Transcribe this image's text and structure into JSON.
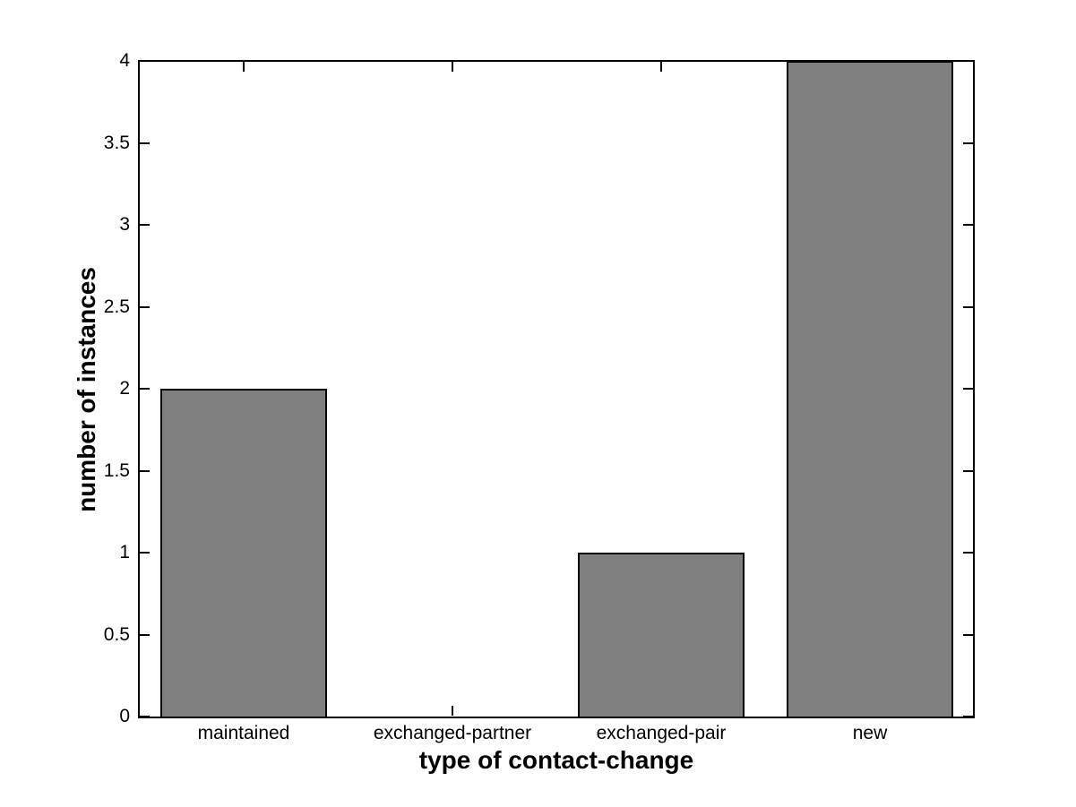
{
  "chart_data": {
    "type": "bar",
    "title": "",
    "xlabel": "type of contact-change",
    "ylabel": "number of instances",
    "categories": [
      "maintained",
      "exchanged-partner",
      "exchanged-pair",
      "new"
    ],
    "values": [
      2,
      0,
      1,
      4
    ],
    "ylim": [
      0,
      4
    ],
    "yticks": [
      0,
      0.5,
      1,
      1.5,
      2,
      2.5,
      3,
      3.5,
      4
    ],
    "ytick_labels": [
      "0",
      "0.5",
      "1",
      "1.5",
      "2",
      "2.5",
      "3",
      "3.5",
      "4"
    ],
    "bar_width_fraction": 0.8,
    "grid": false,
    "legend_position": "none",
    "colors": {
      "bar_fill": "#808080",
      "bar_edge": "#000000",
      "axis": "#000000",
      "text": "#000000",
      "background": "#ffffff"
    }
  }
}
